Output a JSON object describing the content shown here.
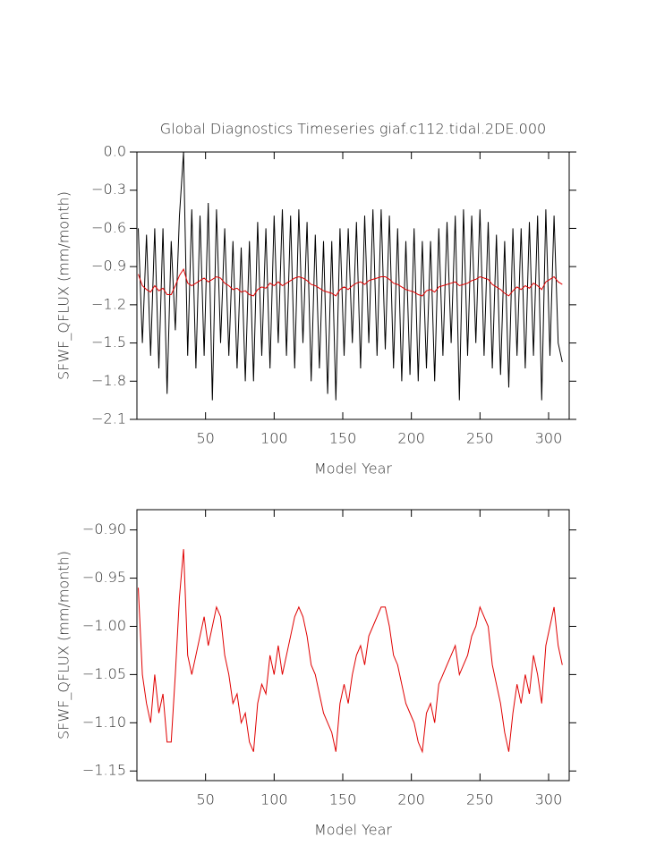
{
  "chart_data": [
    {
      "type": "line",
      "title": "Global Diagnostics Timeseries giaf.c112.tidal.2DE.000",
      "xlabel": "Model Year",
      "ylabel": "SFWF_QFLUX (mm/month)",
      "xlim": [
        0,
        315
      ],
      "xticks": [
        50,
        100,
        150,
        200,
        250,
        300
      ],
      "ylim": [
        -2.1,
        0
      ],
      "yticks": [
        {
          "value": -2.1,
          "label": "−2.1"
        },
        {
          "value": -1.8,
          "label": "−1.8"
        },
        {
          "value": -1.5,
          "label": "−1.5"
        },
        {
          "value": -1.2,
          "label": "−1.2"
        },
        {
          "value": -0.9,
          "label": "−0.9"
        },
        {
          "value": -0.6,
          "label": "−0.6"
        },
        {
          "value": -0.3,
          "label": "−0.3"
        },
        {
          "value": 0,
          "label": "0.0"
        }
      ],
      "x": [
        1,
        4,
        7,
        10,
        13,
        16,
        19,
        22,
        25,
        28,
        31,
        34,
        37,
        40,
        43,
        46,
        49,
        52,
        55,
        58,
        61,
        64,
        67,
        70,
        73,
        76,
        79,
        82,
        85,
        88,
        91,
        94,
        97,
        100,
        103,
        106,
        109,
        112,
        115,
        118,
        121,
        124,
        127,
        130,
        133,
        136,
        139,
        142,
        145,
        148,
        151,
        154,
        157,
        160,
        163,
        166,
        169,
        172,
        175,
        178,
        181,
        184,
        187,
        190,
        193,
        196,
        199,
        202,
        205,
        208,
        211,
        214,
        217,
        220,
        223,
        226,
        229,
        232,
        235,
        238,
        241,
        244,
        247,
        250,
        253,
        256,
        259,
        262,
        265,
        268,
        271,
        274,
        277,
        280,
        283,
        286,
        289,
        292,
        295,
        298,
        301,
        304,
        307,
        310
      ],
      "series": [
        {
          "color": "#000000",
          "values": [
            -0.6,
            -1.5,
            -0.65,
            -1.6,
            -0.6,
            -1.7,
            -0.6,
            -1.9,
            -0.7,
            -1.4,
            -0.5,
            0.0,
            -1.6,
            -0.45,
            -1.7,
            -0.5,
            -1.6,
            -0.4,
            -1.95,
            -0.45,
            -1.5,
            -0.6,
            -1.6,
            -0.7,
            -1.7,
            -0.75,
            -1.8,
            -0.7,
            -1.8,
            -0.55,
            -1.6,
            -0.6,
            -1.7,
            -0.5,
            -1.5,
            -0.45,
            -1.6,
            -0.5,
            -1.7,
            -0.45,
            -1.5,
            -0.55,
            -1.8,
            -0.65,
            -1.7,
            -0.7,
            -1.9,
            -0.7,
            -1.95,
            -0.6,
            -1.6,
            -0.6,
            -1.5,
            -0.55,
            -1.7,
            -0.5,
            -1.5,
            -0.45,
            -1.6,
            -0.45,
            -1.55,
            -0.5,
            -1.7,
            -0.6,
            -1.8,
            -0.7,
            -1.75,
            -0.6,
            -1.8,
            -0.7,
            -1.7,
            -0.7,
            -1.8,
            -0.6,
            -1.6,
            -0.55,
            -1.5,
            -0.5,
            -1.95,
            -0.45,
            -1.6,
            -0.5,
            -1.5,
            -0.45,
            -1.6,
            -0.55,
            -1.7,
            -0.65,
            -1.75,
            -0.7,
            -1.85,
            -0.6,
            -1.6,
            -0.6,
            -1.7,
            -0.55,
            -1.6,
            -0.5,
            -1.95,
            -0.45,
            -1.6,
            -0.5,
            -1.5,
            -1.65
          ]
        },
        {
          "color": "#e00000",
          "values": [
            -0.96,
            -1.05,
            -1.08,
            -1.1,
            -1.05,
            -1.09,
            -1.07,
            -1.12,
            -1.12,
            -1.05,
            -0.97,
            -0.92,
            -1.03,
            -1.05,
            -1.03,
            -1.01,
            -0.99,
            -1.02,
            -1.0,
            -0.98,
            -0.99,
            -1.03,
            -1.05,
            -1.08,
            -1.07,
            -1.1,
            -1.09,
            -1.12,
            -1.13,
            -1.08,
            -1.06,
            -1.07,
            -1.03,
            -1.05,
            -1.02,
            -1.05,
            -1.03,
            -1.01,
            -0.99,
            -0.98,
            -0.99,
            -1.01,
            -1.04,
            -1.05,
            -1.07,
            -1.09,
            -1.1,
            -1.11,
            -1.13,
            -1.08,
            -1.06,
            -1.08,
            -1.05,
            -1.03,
            -1.02,
            -1.04,
            -1.01,
            -1.0,
            -0.99,
            -0.98,
            -0.98,
            -1.0,
            -1.03,
            -1.04,
            -1.06,
            -1.08,
            -1.09,
            -1.1,
            -1.12,
            -1.13,
            -1.09,
            -1.08,
            -1.1,
            -1.06,
            -1.05,
            -1.04,
            -1.03,
            -1.02,
            -1.05,
            -1.04,
            -1.03,
            -1.01,
            -1.0,
            -0.98,
            -0.99,
            -1.0,
            -1.04,
            -1.06,
            -1.08,
            -1.11,
            -1.13,
            -1.09,
            -1.06,
            -1.08,
            -1.05,
            -1.07,
            -1.03,
            -1.05,
            -1.08,
            -1.02,
            -1.0,
            -0.98,
            -1.02,
            -1.04
          ]
        }
      ]
    },
    {
      "type": "line",
      "xlabel": "Model Year",
      "ylabel": "SFWF_QFLUX (mm/month)",
      "xlim": [
        0,
        315
      ],
      "xticks": [
        50,
        100,
        150,
        200,
        250,
        300
      ],
      "ylim": [
        -1.16,
        -0.879
      ],
      "yticks": [
        {
          "value": -1.15,
          "label": "−1.15"
        },
        {
          "value": -1.1,
          "label": "−1.10"
        },
        {
          "value": -1.05,
          "label": "−1.05"
        },
        {
          "value": -1.0,
          "label": "−1.00"
        },
        {
          "value": -0.95,
          "label": "−0.95"
        },
        {
          "value": -0.9,
          "label": "−0.90"
        }
      ],
      "x": [
        1,
        4,
        7,
        10,
        13,
        16,
        19,
        22,
        25,
        28,
        31,
        34,
        37,
        40,
        43,
        46,
        49,
        52,
        55,
        58,
        61,
        64,
        67,
        70,
        73,
        76,
        79,
        82,
        85,
        88,
        91,
        94,
        97,
        100,
        103,
        106,
        109,
        112,
        115,
        118,
        121,
        124,
        127,
        130,
        133,
        136,
        139,
        142,
        145,
        148,
        151,
        154,
        157,
        160,
        163,
        166,
        169,
        172,
        175,
        178,
        181,
        184,
        187,
        190,
        193,
        196,
        199,
        202,
        205,
        208,
        211,
        214,
        217,
        220,
        223,
        226,
        229,
        232,
        235,
        238,
        241,
        244,
        247,
        250,
        253,
        256,
        259,
        262,
        265,
        268,
        271,
        274,
        277,
        280,
        283,
        286,
        289,
        292,
        295,
        298,
        301,
        304,
        307,
        310
      ],
      "series": [
        {
          "color": "#e00000",
          "values": [
            -0.96,
            -1.05,
            -1.08,
            -1.1,
            -1.05,
            -1.09,
            -1.07,
            -1.12,
            -1.12,
            -1.05,
            -0.97,
            -0.92,
            -1.03,
            -1.05,
            -1.03,
            -1.01,
            -0.99,
            -1.02,
            -1.0,
            -0.98,
            -0.99,
            -1.03,
            -1.05,
            -1.08,
            -1.07,
            -1.1,
            -1.09,
            -1.12,
            -1.13,
            -1.08,
            -1.06,
            -1.07,
            -1.03,
            -1.05,
            -1.02,
            -1.05,
            -1.03,
            -1.01,
            -0.99,
            -0.98,
            -0.99,
            -1.01,
            -1.04,
            -1.05,
            -1.07,
            -1.09,
            -1.1,
            -1.11,
            -1.13,
            -1.08,
            -1.06,
            -1.08,
            -1.05,
            -1.03,
            -1.02,
            -1.04,
            -1.01,
            -1.0,
            -0.99,
            -0.98,
            -0.98,
            -1.0,
            -1.03,
            -1.04,
            -1.06,
            -1.08,
            -1.09,
            -1.1,
            -1.12,
            -1.13,
            -1.09,
            -1.08,
            -1.1,
            -1.06,
            -1.05,
            -1.04,
            -1.03,
            -1.02,
            -1.05,
            -1.04,
            -1.03,
            -1.01,
            -1.0,
            -0.98,
            -0.99,
            -1.0,
            -1.04,
            -1.06,
            -1.08,
            -1.11,
            -1.13,
            -1.09,
            -1.06,
            -1.08,
            -1.05,
            -1.07,
            -1.03,
            -1.05,
            -1.08,
            -1.02,
            -1.0,
            -0.98,
            -1.02,
            -1.04
          ]
        }
      ]
    }
  ]
}
